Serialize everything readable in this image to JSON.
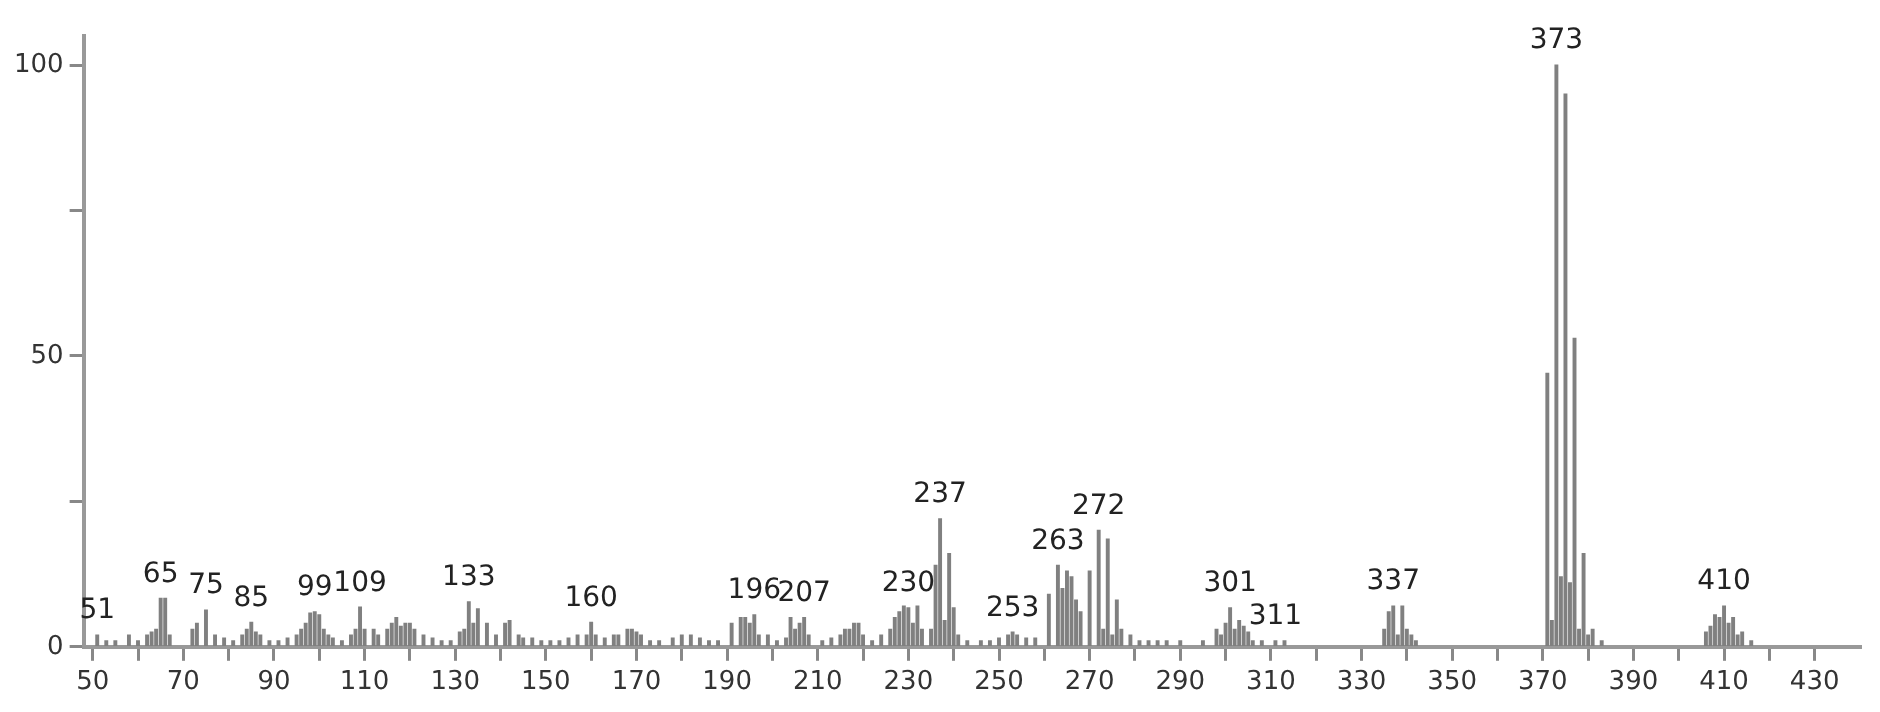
{
  "chart_data": {
    "type": "bar",
    "color": "#808080",
    "x": [
      51,
      53,
      55,
      58,
      60,
      62,
      63,
      64,
      65,
      66,
      67,
      72,
      73,
      75,
      77,
      79,
      81,
      83,
      84,
      85,
      86,
      87,
      89,
      91,
      93,
      95,
      96,
      97,
      98,
      99,
      100,
      101,
      102,
      103,
      105,
      107,
      108,
      109,
      110,
      112,
      113,
      115,
      116,
      117,
      118,
      119,
      120,
      121,
      123,
      125,
      127,
      129,
      131,
      132,
      133,
      134,
      135,
      137,
      139,
      141,
      142,
      144,
      145,
      147,
      149,
      151,
      153,
      155,
      157,
      159,
      160,
      161,
      163,
      165,
      166,
      168,
      169,
      170,
      171,
      173,
      175,
      178,
      180,
      182,
      184,
      186,
      188,
      191,
      193,
      194,
      195,
      196,
      197,
      199,
      201,
      203,
      204,
      205,
      206,
      207,
      208,
      211,
      213,
      215,
      216,
      217,
      218,
      219,
      220,
      222,
      224,
      226,
      227,
      228,
      229,
      230,
      231,
      232,
      233,
      235,
      236,
      237,
      238,
      239,
      240,
      241,
      243,
      246,
      248,
      250,
      252,
      253,
      254,
      256,
      258,
      261,
      263,
      264,
      265,
      266,
      267,
      268,
      270,
      272,
      273,
      274,
      275,
      276,
      277,
      279,
      281,
      283,
      285,
      287,
      290,
      295,
      298,
      299,
      300,
      301,
      302,
      303,
      304,
      305,
      306,
      308,
      311,
      313,
      335,
      336,
      337,
      338,
      339,
      340,
      341,
      342,
      371,
      372,
      373,
      374,
      375,
      376,
      377,
      378,
      379,
      380,
      381,
      383,
      406,
      407,
      408,
      409,
      410,
      411,
      412,
      413,
      414,
      416
    ],
    "values": [
      2,
      1,
      1,
      2,
      1,
      2,
      2.5,
      3,
      8.3,
      8.3,
      2,
      3,
      4,
      6.3,
      2,
      1.5,
      1,
      2,
      3,
      4.2,
      2.5,
      2,
      1,
      1,
      1.5,
      2,
      3,
      4,
      5.8,
      6,
      5.5,
      3,
      2,
      1.5,
      1,
      2,
      3,
      6.8,
      3,
      3,
      2,
      3,
      4,
      5,
      3.5,
      4,
      4,
      3,
      2,
      1.5,
      1,
      1,
      2.5,
      3,
      7.7,
      4,
      6.5,
      4,
      2,
      4,
      4.5,
      2,
      1.5,
      1.5,
      1,
      1,
      1,
      1.5,
      2,
      2,
      4.2,
      2,
      1.5,
      2,
      2,
      3,
      3,
      2.5,
      2,
      1,
      1,
      1.5,
      2,
      2,
      1.5,
      1,
      1,
      4,
      5,
      5,
      4,
      5.5,
      2,
      2,
      1,
      1.5,
      5,
      3,
      4,
      5,
      2,
      1,
      1.5,
      2,
      3,
      3,
      4,
      4,
      2,
      1,
      2,
      3,
      5,
      6,
      7,
      6.7,
      4,
      7,
      3,
      3,
      14,
      22,
      4.5,
      16,
      6.7,
      2,
      1,
      1,
      1,
      1.5,
      2,
      2.5,
      2,
      1.5,
      1.5,
      9,
      14,
      10,
      13,
      12,
      8,
      6,
      13,
      20,
      3,
      18.5,
      2,
      8,
      3,
      2,
      1,
      1,
      1,
      1,
      1,
      1,
      3,
      2,
      4,
      6.7,
      3,
      4.5,
      3.5,
      2.5,
      1,
      1,
      1,
      1,
      3,
      6,
      7,
      2,
      7,
      3,
      2,
      1,
      47,
      4.5,
      100,
      12,
      95,
      11,
      53,
      3,
      16,
      2,
      3,
      1,
      2.5,
      3.5,
      5.5,
      5,
      7,
      4,
      5,
      2,
      2.5,
      1
    ],
    "xlim": [
      48,
      440
    ],
    "xticks": [
      50,
      {
        "value": 60,
        "label": null
      },
      70,
      {
        "value": 80,
        "label": null
      },
      90,
      {
        "value": 100,
        "label": null
      },
      110,
      {
        "value": 120,
        "label": null
      },
      130,
      {
        "value": 140,
        "label": null
      },
      150,
      {
        "value": 160,
        "label": null
      },
      170,
      {
        "value": 180,
        "label": null
      },
      190,
      {
        "value": 200,
        "label": null
      },
      210,
      {
        "value": 220,
        "label": null
      },
      230,
      {
        "value": 240,
        "label": null
      },
      250,
      {
        "value": 260,
        "label": null
      },
      270,
      {
        "value": 280,
        "label": null
      },
      290,
      {
        "value": 300,
        "label": null
      },
      310,
      {
        "value": 320,
        "label": null
      },
      330,
      {
        "value": 340,
        "label": null
      },
      350,
      {
        "value": 360,
        "label": null
      },
      370,
      {
        "value": 380,
        "label": null
      },
      390,
      {
        "value": 400,
        "label": null
      },
      410,
      {
        "value": 420,
        "label": null
      },
      430
    ],
    "ylim": [
      0,
      105
    ],
    "yticks": [
      0,
      {
        "value": 25,
        "label": null
      },
      50,
      {
        "value": 75,
        "label": null
      },
      100
    ],
    "annotations": [
      {
        "text": "51",
        "x": 51,
        "y": 2
      },
      {
        "text": "65",
        "x": 65,
        "y": 8.3
      },
      {
        "text": "75",
        "x": 75,
        "y": 6.3
      },
      {
        "text": "85",
        "x": 85,
        "y": 4.2
      },
      {
        "text": "99",
        "x": 99,
        "y": 6
      },
      {
        "text": "109",
        "x": 109,
        "y": 6.8
      },
      {
        "text": "133",
        "x": 133,
        "y": 7.7
      },
      {
        "text": "160",
        "x": 160,
        "y": 4.2
      },
      {
        "text": "196",
        "x": 196,
        "y": 5.5
      },
      {
        "text": "207",
        "x": 207,
        "y": 5
      },
      {
        "text": "230",
        "x": 230,
        "y": 6.7
      },
      {
        "text": "237",
        "x": 237,
        "y": 22
      },
      {
        "text": "253",
        "x": 253,
        "y": 2.5
      },
      {
        "text": "263",
        "x": 263,
        "y": 14
      },
      {
        "text": "272",
        "x": 272,
        "y": 20
      },
      {
        "text": "301",
        "x": 301,
        "y": 6.7
      },
      {
        "text": "311",
        "x": 311,
        "y": 1
      },
      {
        "text": "337",
        "x": 337,
        "y": 7
      },
      {
        "text": "373",
        "x": 373,
        "y": 100
      },
      {
        "text": "410",
        "x": 410,
        "y": 7
      }
    ]
  }
}
